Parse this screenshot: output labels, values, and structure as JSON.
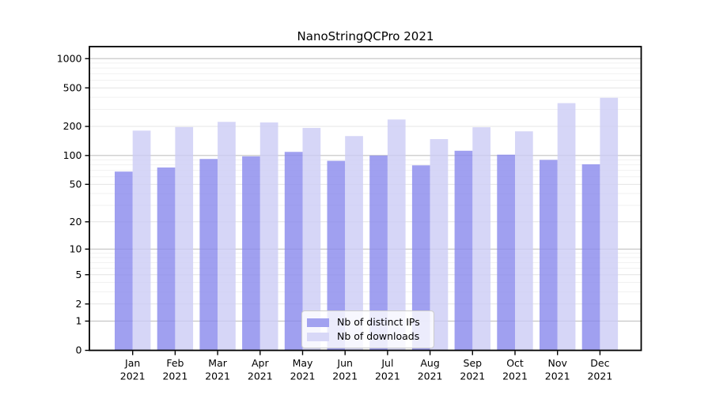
{
  "title": "NanoStringQCPro 2021",
  "legend": {
    "items": [
      {
        "label": "Nb of distinct IPs"
      },
      {
        "label": "Nb of downloads"
      }
    ]
  },
  "colors": {
    "ips_bar": "#8888ec",
    "downloads_bar": "#ccccf5",
    "ips_solid": "#a2a2f0",
    "downloads_solid": "#d8d8f7",
    "grid_major": "#c2c2c2",
    "grid_mid": "#e4e4e4",
    "grid_minor": "#f1f1f1",
    "axis": "#000000",
    "text": "#000000",
    "background": "#ffffff"
  },
  "chart_data": {
    "type": "bar",
    "title": "NanoStringQCPro 2021",
    "categories": [
      "Jan",
      "Feb",
      "Mar",
      "Apr",
      "May",
      "Jun",
      "Jul",
      "Aug",
      "Sep",
      "Oct",
      "Nov",
      "Dec"
    ],
    "year_label": "2021",
    "series": [
      {
        "name": "Nb of distinct IPs",
        "values": [
          68,
          75,
          92,
          98,
          109,
          88,
          100,
          79,
          112,
          102,
          90,
          81
        ]
      },
      {
        "name": "Nb of downloads",
        "values": [
          181,
          197,
          223,
          220,
          193,
          159,
          236,
          148,
          196,
          178,
          348,
          395
        ]
      }
    ],
    "xlabel": "",
    "ylabel": "",
    "yscale": "log1p",
    "yticks": [
      0,
      1,
      2,
      5,
      10,
      20,
      50,
      100,
      200,
      500,
      1000
    ],
    "ylim": [
      0,
      1400
    ],
    "grid": "on",
    "legend_position": "bottom-center"
  }
}
